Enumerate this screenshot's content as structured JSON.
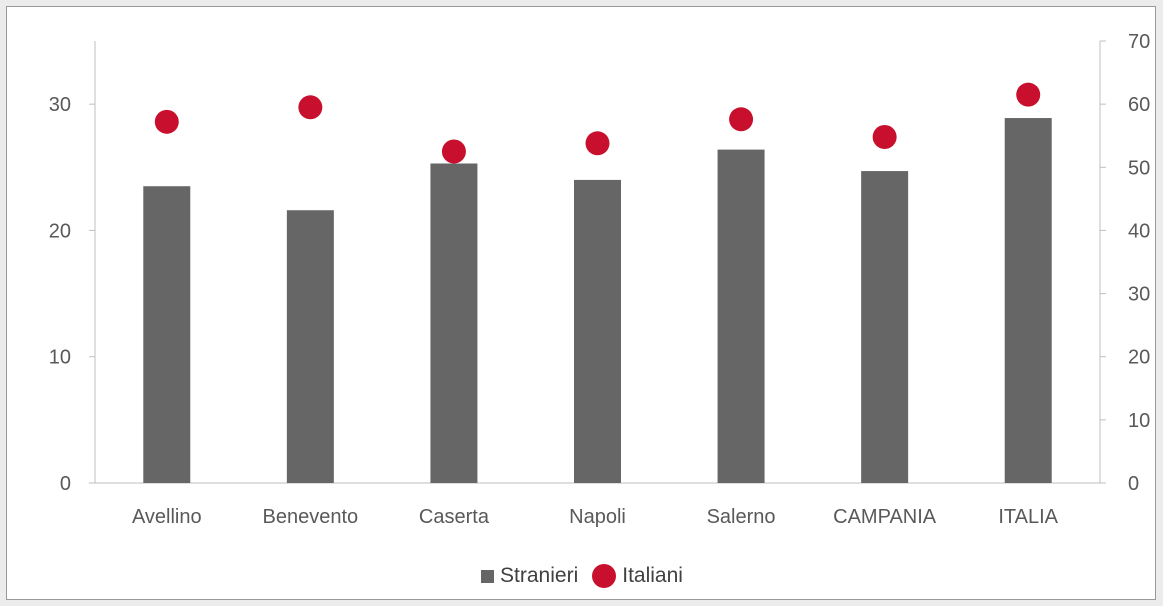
{
  "chart_data": {
    "type": "bar",
    "categories": [
      "Avellino",
      "Benevento",
      "Caserta",
      "Napoli",
      "Salerno",
      "CAMPANIA",
      "ITALIA"
    ],
    "series": [
      {
        "name": "Stranieri",
        "type": "bar",
        "axis": "left",
        "color": "#666666",
        "values": [
          23.5,
          21.6,
          25.3,
          24.0,
          26.4,
          24.7,
          28.9
        ]
      },
      {
        "name": "Italiani",
        "type": "scatter",
        "axis": "right",
        "color": "#c8102e",
        "values": [
          57.2,
          59.5,
          52.5,
          53.8,
          57.6,
          54.8,
          61.5
        ]
      }
    ],
    "y_left": {
      "lim": [
        0,
        35
      ],
      "ticks": [
        0,
        10,
        20,
        30
      ]
    },
    "y_right": {
      "lim": [
        0,
        70
      ],
      "ticks": [
        0,
        10,
        20,
        30,
        40,
        50,
        60,
        70
      ]
    },
    "legend_position": "bottom",
    "grid": false
  },
  "legend": {
    "stranieri": "Stranieri",
    "italiani": "Italiani"
  }
}
